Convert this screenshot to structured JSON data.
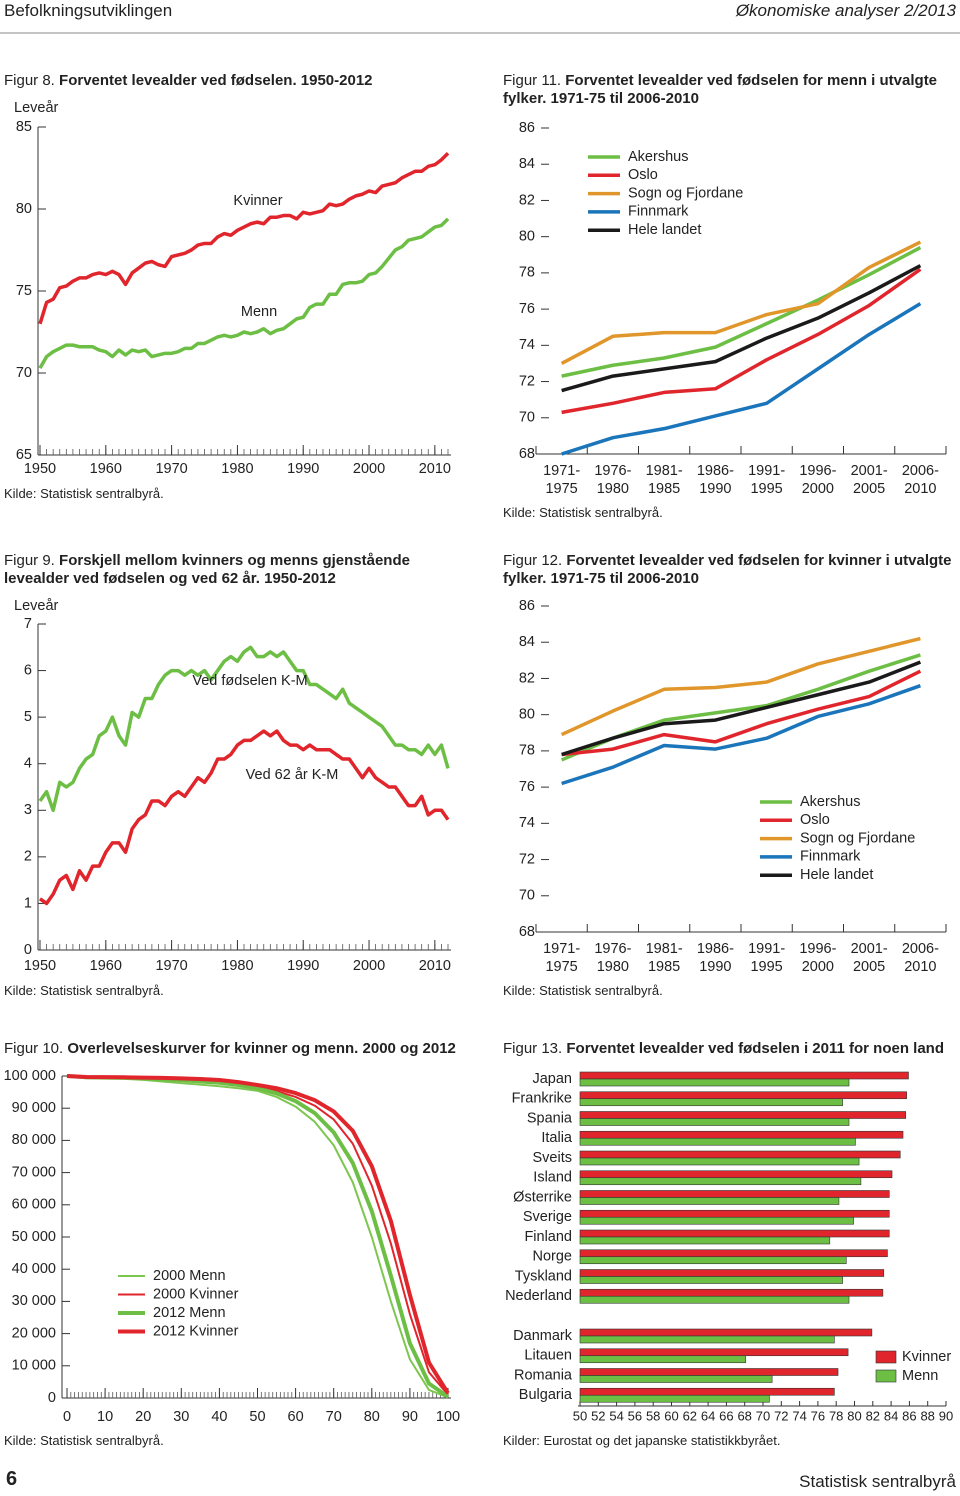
{
  "header": {
    "left": "Befolkningsutviklingen",
    "right": "Økonomiske analyser 2/2013"
  },
  "footer": {
    "page": "6",
    "publisher": "Statistisk sentralbyrå"
  },
  "chart_data": [
    {
      "type": "line",
      "figure": "Figur 8.",
      "title": "Forventet levealder ved fødselen. 1950-2012",
      "source": "Kilde: Statistisk sentralbyrå.",
      "ylabel": "Leveår",
      "x": [
        1950,
        1951,
        1952,
        1953,
        1954,
        1955,
        1956,
        1957,
        1958,
        1959,
        1960,
        1961,
        1962,
        1963,
        1964,
        1965,
        1966,
        1967,
        1968,
        1969,
        1970,
        1971,
        1972,
        1973,
        1974,
        1975,
        1976,
        1977,
        1978,
        1979,
        1980,
        1981,
        1982,
        1983,
        1984,
        1985,
        1986,
        1987,
        1988,
        1989,
        1990,
        1991,
        1992,
        1993,
        1994,
        1995,
        1996,
        1997,
        1998,
        1999,
        2000,
        2001,
        2002,
        2003,
        2004,
        2005,
        2006,
        2007,
        2008,
        2009,
        2010,
        2011,
        2012
      ],
      "series": [
        {
          "name": "Kvinner",
          "color": "#e0262c",
          "values": [
            73.0,
            74.3,
            74.5,
            75.2,
            75.3,
            75.6,
            75.8,
            75.8,
            76.0,
            76.1,
            76.0,
            76.2,
            76.0,
            75.4,
            76.1,
            76.4,
            76.7,
            76.8,
            76.6,
            76.5,
            77.1,
            77.2,
            77.3,
            77.5,
            77.8,
            77.9,
            77.9,
            78.3,
            78.5,
            78.4,
            78.7,
            78.9,
            79.1,
            79.2,
            79.1,
            79.5,
            79.5,
            79.6,
            79.6,
            79.4,
            79.8,
            79.7,
            79.8,
            79.9,
            80.3,
            80.2,
            80.3,
            80.6,
            80.8,
            80.9,
            81.1,
            81.0,
            81.4,
            81.5,
            81.6,
            81.9,
            82.1,
            82.3,
            82.3,
            82.6,
            82.7,
            83.0,
            83.4
          ]
        },
        {
          "name": "Menn",
          "color": "#6cbf44",
          "values": [
            70.3,
            71.0,
            71.3,
            71.5,
            71.7,
            71.7,
            71.6,
            71.6,
            71.6,
            71.4,
            71.3,
            71.0,
            71.4,
            71.1,
            71.4,
            71.3,
            71.4,
            71.0,
            71.1,
            71.2,
            71.2,
            71.3,
            71.5,
            71.5,
            71.8,
            71.8,
            72.0,
            72.2,
            72.3,
            72.2,
            72.3,
            72.5,
            72.4,
            72.5,
            72.7,
            72.4,
            72.6,
            72.7,
            73.0,
            73.3,
            73.4,
            74.0,
            74.2,
            74.2,
            74.8,
            74.8,
            75.4,
            75.5,
            75.5,
            75.6,
            76.0,
            76.1,
            76.5,
            77.0,
            77.5,
            77.7,
            78.1,
            78.2,
            78.3,
            78.6,
            78.9,
            79.0,
            79.4
          ]
        }
      ],
      "xlim": [
        1950,
        2012
      ],
      "xticks": [
        1950,
        1960,
        1970,
        1980,
        1990,
        2000,
        2010
      ],
      "ylim": [
        65,
        85
      ],
      "yticks": [
        65,
        70,
        75,
        80,
        85
      ]
    },
    {
      "type": "line",
      "figure": "Figur 9.",
      "title": "Forskjell mellom kvinners og menns gjenstående levealder ved fødselen og ved 62 år. 1950-2012",
      "source": "Kilde: Statistisk sentralbyrå.",
      "ylabel": "Leveår",
      "x": [
        1950,
        1951,
        1952,
        1953,
        1954,
        1955,
        1956,
        1957,
        1958,
        1959,
        1960,
        1961,
        1962,
        1963,
        1964,
        1965,
        1966,
        1967,
        1968,
        1969,
        1970,
        1971,
        1972,
        1973,
        1974,
        1975,
        1976,
        1977,
        1978,
        1979,
        1980,
        1981,
        1982,
        1983,
        1984,
        1985,
        1986,
        1987,
        1988,
        1989,
        1990,
        1991,
        1992,
        1993,
        1994,
        1995,
        1996,
        1997,
        1998,
        1999,
        2000,
        2001,
        2002,
        2003,
        2004,
        2005,
        2006,
        2007,
        2008,
        2009,
        2010,
        2011,
        2012
      ],
      "series": [
        {
          "name": "Ved fødselen K-M",
          "color": "#6cbf44",
          "values": [
            3.2,
            3.4,
            3.0,
            3.6,
            3.5,
            3.6,
            3.9,
            4.1,
            4.2,
            4.6,
            4.7,
            5.0,
            4.6,
            4.4,
            5.1,
            5.0,
            5.4,
            5.4,
            5.7,
            5.9,
            6.0,
            6.0,
            5.9,
            6.0,
            5.9,
            6.0,
            5.8,
            6.0,
            6.2,
            6.3,
            6.2,
            6.4,
            6.5,
            6.3,
            6.3,
            6.4,
            6.3,
            6.4,
            6.2,
            6.0,
            6.0,
            5.7,
            5.7,
            5.6,
            5.5,
            5.4,
            5.6,
            5.3,
            5.2,
            5.1,
            5.0,
            4.9,
            4.8,
            4.6,
            4.4,
            4.4,
            4.3,
            4.3,
            4.2,
            4.4,
            4.2,
            4.4,
            3.9
          ]
        },
        {
          "name": "Ved 62 år K-M",
          "color": "#e0262c",
          "values": [
            1.1,
            1.0,
            1.2,
            1.5,
            1.6,
            1.3,
            1.7,
            1.5,
            1.8,
            1.8,
            2.1,
            2.3,
            2.3,
            2.1,
            2.6,
            2.8,
            2.9,
            3.2,
            3.2,
            3.1,
            3.3,
            3.4,
            3.3,
            3.5,
            3.7,
            3.6,
            3.8,
            4.1,
            4.1,
            4.2,
            4.4,
            4.5,
            4.5,
            4.6,
            4.7,
            4.6,
            4.7,
            4.5,
            4.4,
            4.4,
            4.3,
            4.4,
            4.3,
            4.3,
            4.3,
            4.2,
            4.1,
            4.1,
            3.9,
            3.7,
            3.9,
            3.7,
            3.6,
            3.5,
            3.5,
            3.3,
            3.1,
            3.1,
            3.3,
            2.9,
            3.0,
            3.0,
            2.8
          ]
        }
      ],
      "xlim": [
        1950,
        2012
      ],
      "xticks": [
        1950,
        1960,
        1970,
        1980,
        1990,
        2000,
        2010
      ],
      "ylim": [
        0,
        7
      ],
      "yticks": [
        0,
        1,
        2,
        3,
        4,
        5,
        6,
        7
      ]
    },
    {
      "type": "line",
      "figure": "Figur 10.",
      "title": "Overlevelseskurver for kvinner og menn. 2000 og 2012",
      "source": "Kilde: Statistisk sentralbyrå.",
      "x": [
        0,
        5,
        10,
        15,
        20,
        25,
        30,
        35,
        40,
        45,
        50,
        55,
        60,
        65,
        70,
        75,
        80,
        85,
        90,
        95,
        100
      ],
      "series": [
        {
          "name": "2000 Menn",
          "color": "#7dc64f",
          "values": [
            100000,
            99300,
            99200,
            99100,
            98800,
            98300,
            97800,
            97300,
            96800,
            96200,
            95400,
            93500,
            90500,
            85800,
            78500,
            67000,
            50000,
            30000,
            12000,
            2500,
            200
          ]
        },
        {
          "name": "2000 Kvinner",
          "color": "#e0262c",
          "values": [
            100000,
            99450,
            99400,
            99350,
            99200,
            99050,
            98900,
            98700,
            98400,
            97700,
            96600,
            95300,
            93500,
            90800,
            86500,
            79000,
            66000,
            48000,
            26000,
            8000,
            1000
          ]
        },
        {
          "name": "2012 Menn",
          "color": "#6cbf44",
          "values": [
            100000,
            99600,
            99550,
            99500,
            99300,
            99000,
            98700,
            98300,
            97900,
            97200,
            96200,
            94600,
            92200,
            88500,
            82500,
            73000,
            58000,
            38000,
            17000,
            4500,
            400
          ]
        },
        {
          "name": "2012 Kvinner",
          "color": "#e0262c",
          "values": [
            100000,
            99700,
            99650,
            99600,
            99500,
            99400,
            99250,
            99050,
            98750,
            98100,
            97200,
            96200,
            94700,
            92500,
            89000,
            83000,
            72000,
            55000,
            32000,
            11000,
            1500
          ]
        }
      ],
      "xlim": [
        0,
        100
      ],
      "xticks": [
        0,
        10,
        20,
        30,
        40,
        50,
        60,
        70,
        80,
        90,
        100
      ],
      "ylim": [
        0,
        100000
      ],
      "yticks": [
        0,
        {
          "value": 10000,
          "label": "10 000"
        },
        {
          "value": 20000,
          "label": "20 000"
        },
        {
          "value": 30000,
          "label": "30 000"
        },
        {
          "value": 40000,
          "label": "40 000"
        },
        {
          "value": 50000,
          "label": "50 000"
        },
        {
          "value": 60000,
          "label": "60 000"
        },
        {
          "value": 70000,
          "label": "70 000"
        },
        {
          "value": 80000,
          "label": "80 000"
        },
        {
          "value": 90000,
          "label": "90 000"
        },
        {
          "value": 100000,
          "label": "100 000"
        }
      ]
    },
    {
      "type": "line",
      "figure": "Figur 11.",
      "title": "Forventet levealder ved fødselen for menn i utvalgte fylker. 1971-75 til 2006-2010",
      "source": "Kilde: Statistisk sentralbyrå.",
      "categories": [
        "1971-1975",
        "1976-1980",
        "1981-1985",
        "1986-1990",
        "1991-1995",
        "1996-2000",
        "2001-2005",
        "2006-2010"
      ],
      "series": [
        {
          "name": "Akershus",
          "color": "#6cbf44",
          "values": [
            72.3,
            72.9,
            73.3,
            73.9,
            75.2,
            76.5,
            77.9,
            79.4
          ]
        },
        {
          "name": "Oslo",
          "color": "#e0262c",
          "values": [
            70.3,
            70.8,
            71.4,
            71.6,
            73.2,
            74.6,
            76.2,
            78.2
          ]
        },
        {
          "name": "Sogn og Fjordane",
          "color": "#e0962a",
          "values": [
            73.0,
            74.5,
            74.7,
            74.7,
            75.7,
            76.3,
            78.3,
            79.7
          ]
        },
        {
          "name": "Finnmark",
          "color": "#1b75bb",
          "values": [
            68.0,
            68.9,
            69.4,
            70.1,
            70.8,
            72.7,
            74.6,
            76.3
          ]
        },
        {
          "name": "Hele landet",
          "color": "#1a1a1a",
          "values": [
            71.5,
            72.3,
            72.7,
            73.1,
            74.4,
            75.5,
            76.9,
            78.4
          ]
        }
      ],
      "ylim": [
        68,
        86
      ],
      "yticks": [
        68,
        70,
        72,
        74,
        76,
        78,
        80,
        82,
        84,
        86
      ]
    },
    {
      "type": "line",
      "figure": "Figur 12.",
      "title": "Forventet levealder ved fødselen for kvinner i utvalgte fylker. 1971-75 til 2006-2010",
      "source": "Kilde: Statistisk sentralbyrå.",
      "categories": [
        "1971-1975",
        "1976-1980",
        "1981-1985",
        "1986-1990",
        "1991-1995",
        "1996-2000",
        "2001-2005",
        "2006-2010"
      ],
      "series": [
        {
          "name": "Akershus",
          "color": "#6cbf44",
          "values": [
            77.5,
            78.7,
            79.7,
            80.1,
            80.5,
            81.4,
            82.4,
            83.3
          ]
        },
        {
          "name": "Oslo",
          "color": "#e0262c",
          "values": [
            77.8,
            78.1,
            78.9,
            78.5,
            79.5,
            80.3,
            81.0,
            82.4
          ]
        },
        {
          "name": "Sogn og Fjordane",
          "color": "#e0962a",
          "values": [
            78.9,
            80.2,
            81.4,
            81.5,
            81.8,
            82.8,
            83.5,
            84.2
          ]
        },
        {
          "name": "Finnmark",
          "color": "#1b75bb",
          "values": [
            76.2,
            77.1,
            78.3,
            78.1,
            78.7,
            79.9,
            80.6,
            81.6
          ]
        },
        {
          "name": "Hele landet",
          "color": "#1a1a1a",
          "values": [
            77.8,
            78.7,
            79.5,
            79.7,
            80.4,
            81.1,
            81.8,
            82.9
          ]
        }
      ],
      "ylim": [
        68,
        86
      ],
      "yticks": [
        68,
        70,
        72,
        74,
        76,
        78,
        80,
        82,
        84,
        86
      ]
    },
    {
      "type": "barh",
      "figure": "Figur 13.",
      "title": "Forventet levealder ved fødselen i 2011 for noen land",
      "source": "Kilder: Eurostat og det japanske statistikkbyrået.",
      "categories": [
        "Japan",
        "Frankrike",
        "Spania",
        "Italia",
        "Sveits",
        "Island",
        "Østerrike",
        "Sverige",
        "Finland",
        "Norge",
        "Tyskland",
        "Nederland",
        "Danmark",
        "Litauen",
        "Romania",
        "Bulgaria"
      ],
      "series": [
        {
          "name": "Kvinner",
          "color": "#e0262c",
          "values": [
            85.9,
            85.7,
            85.6,
            85.3,
            85.0,
            84.1,
            83.8,
            83.8,
            83.8,
            83.6,
            83.2,
            83.1,
            81.9,
            79.3,
            78.2,
            77.8
          ]
        },
        {
          "name": "Menn",
          "color": "#6cbf44",
          "values": [
            79.4,
            78.7,
            79.4,
            80.1,
            80.5,
            80.7,
            78.3,
            79.9,
            77.3,
            79.1,
            78.7,
            79.4,
            77.8,
            68.1,
            71.0,
            70.7
          ]
        }
      ],
      "xlim": [
        50,
        90
      ],
      "xticks": [
        50,
        52,
        54,
        56,
        58,
        60,
        62,
        64,
        66,
        68,
        70,
        72,
        74,
        76,
        78,
        80,
        82,
        84,
        86,
        88,
        90
      ]
    }
  ]
}
